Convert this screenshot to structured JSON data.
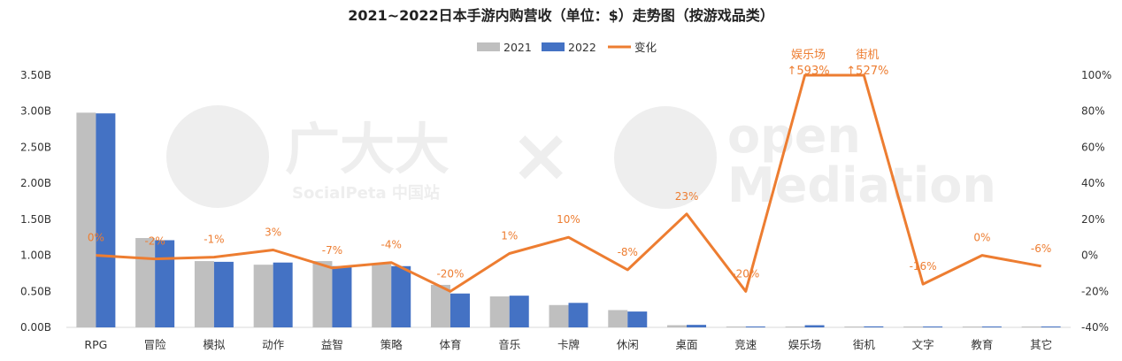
{
  "chart_data": {
    "type": "bar",
    "title": "2021~2022日本手游内购营收（单位：$）走势图（按游戏品类）",
    "categories": [
      "RPG",
      "冒险",
      "模拟",
      "动作",
      "益智",
      "策略",
      "体育",
      "音乐",
      "卡牌",
      "休闲",
      "桌面",
      "竞速",
      "娱乐场",
      "街机",
      "文字",
      "教育",
      "其它"
    ],
    "series": [
      {
        "name": "2021",
        "values": [
          2.98,
          1.24,
          0.92,
          0.87,
          0.92,
          0.88,
          0.59,
          0.43,
          0.31,
          0.24,
          0.03,
          0.01,
          0.005,
          0.003,
          0.002,
          0.003,
          0.01
        ],
        "color": "#BFBFBF"
      },
      {
        "name": "2022",
        "values": [
          2.97,
          1.21,
          0.91,
          0.9,
          0.85,
          0.85,
          0.47,
          0.44,
          0.34,
          0.22,
          0.035,
          0.008,
          0.03,
          0.014,
          0.002,
          0.003,
          0.01
        ],
        "color": "#4472C4"
      }
    ],
    "line": {
      "name": "变化",
      "values": [
        0,
        -2,
        -1,
        3,
        -7,
        -4,
        -20,
        1,
        10,
        -8,
        23,
        -20,
        100,
        100,
        -16,
        0,
        -6
      ],
      "labels": [
        "0%",
        "-2%",
        "-1%",
        "3%",
        "-7%",
        "-4%",
        "-20%",
        "1%",
        "10%",
        "-8%",
        "23%",
        "-20%",
        "",
        "",
        "-16%",
        "0%",
        "-6%"
      ],
      "color": "#ED7D31"
    },
    "annotations": [
      {
        "category": "娱乐场",
        "name": "娱乐场",
        "value": "↑593%"
      },
      {
        "category": "街机",
        "name": "街机",
        "value": "↑527%"
      }
    ],
    "y_left": {
      "min": 0,
      "max": 3.5,
      "ticks": [
        "0.00B",
        "0.50B",
        "1.00B",
        "1.50B",
        "2.00B",
        "2.50B",
        "3.00B",
        "3.50B"
      ]
    },
    "y_right": {
      "min": -40,
      "max": 100,
      "ticks": [
        "-40%",
        "-20%",
        "0%",
        "20%",
        "40%",
        "60%",
        "80%",
        "100%"
      ]
    },
    "legend": {
      "position": "top",
      "items": [
        "2021",
        "2022",
        "变化"
      ]
    },
    "grid": false
  },
  "watermark": {
    "left_cn": "广大大",
    "left_en": "SocialPeta 中国站",
    "cross": "×",
    "right_top": "open",
    "right_bottom": "Mediation"
  }
}
